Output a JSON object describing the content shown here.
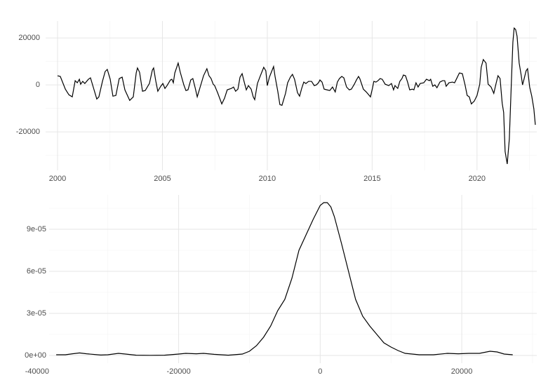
{
  "chart_data": [
    {
      "type": "line",
      "color": "#000000",
      "grid": true,
      "xlim": [
        1999.43,
        2022.85
      ],
      "ylim": [
        -36400,
        27200
      ],
      "xticks": [
        2000,
        2005,
        2010,
        2015,
        2020
      ],
      "yticks": [
        -20000,
        0,
        20000
      ],
      "minor_xticks": [
        2002.5,
        2007.5,
        2012.5,
        2017.5,
        2022.5
      ],
      "minor_yticks": [
        -30000,
        -10000,
        10000
      ],
      "x": [
        2000.0,
        2000.13,
        2000.37,
        2000.54,
        2000.7,
        2000.84,
        2000.94,
        2001.04,
        2001.1,
        2001.2,
        2001.3,
        2001.47,
        2001.57,
        2001.71,
        2001.87,
        2001.97,
        2002.14,
        2002.27,
        2002.37,
        2002.51,
        2002.64,
        2002.78,
        2002.94,
        2003.08,
        2003.21,
        2003.44,
        2003.61,
        2003.75,
        2003.81,
        2003.91,
        2004.05,
        2004.18,
        2004.38,
        2004.52,
        2004.58,
        2004.68,
        2004.78,
        2004.92,
        2005.02,
        2005.12,
        2005.22,
        2005.38,
        2005.45,
        2005.52,
        2005.59,
        2005.75,
        2005.85,
        2006.02,
        2006.12,
        2006.22,
        2006.35,
        2006.45,
        2006.56,
        2006.66,
        2006.79,
        2006.96,
        2007.12,
        2007.22,
        2007.32,
        2007.42,
        2007.49,
        2007.63,
        2007.83,
        2007.96,
        2008.09,
        2008.29,
        2008.39,
        2008.49,
        2008.6,
        2008.7,
        2008.8,
        2008.9,
        2009.0,
        2009.1,
        2009.23,
        2009.33,
        2009.4,
        2009.53,
        2009.67,
        2009.83,
        2009.93,
        2010.0,
        2010.1,
        2010.3,
        2010.37,
        2010.5,
        2010.6,
        2010.7,
        2010.87,
        2010.97,
        2011.1,
        2011.2,
        2011.3,
        2011.44,
        2011.54,
        2011.64,
        2011.74,
        2011.84,
        2011.97,
        2012.11,
        2012.24,
        2012.34,
        2012.44,
        2012.51,
        2012.61,
        2012.71,
        2012.84,
        2012.98,
        2013.11,
        2013.24,
        2013.34,
        2013.44,
        2013.55,
        2013.65,
        2013.78,
        2013.91,
        2014.01,
        2014.15,
        2014.25,
        2014.35,
        2014.41,
        2014.58,
        2014.72,
        2014.92,
        2015.02,
        2015.08,
        2015.18,
        2015.28,
        2015.38,
        2015.48,
        2015.62,
        2015.79,
        2015.92,
        2016.02,
        2016.09,
        2016.22,
        2016.32,
        2016.42,
        2016.49,
        2016.59,
        2016.69,
        2016.79,
        2016.92,
        2016.99,
        2017.09,
        2017.19,
        2017.29,
        2017.46,
        2017.59,
        2017.73,
        2017.79,
        2017.89,
        2017.99,
        2018.09,
        2018.23,
        2018.36,
        2018.46,
        2018.53,
        2018.66,
        2018.83,
        2018.93,
        2019.03,
        2019.16,
        2019.3,
        2019.43,
        2019.53,
        2019.63,
        2019.73,
        2019.87,
        2020.0,
        2020.13,
        2020.2,
        2020.3,
        2020.43,
        2020.53,
        2020.67,
        2020.8,
        2020.9,
        2021.0,
        2021.1,
        2021.2,
        2021.27,
        2021.34,
        2021.44,
        2021.54,
        2021.64,
        2021.71,
        2021.77,
        2021.84,
        2021.91,
        2022.01,
        2022.11,
        2022.17,
        2022.24,
        2022.34,
        2022.41,
        2022.51,
        2022.61,
        2022.71,
        2022.78
      ],
      "values": [
        3900,
        3600,
        -1800,
        -4200,
        -5100,
        1800,
        900,
        2400,
        300,
        1500,
        600,
        2400,
        3000,
        -1200,
        -6000,
        -5100,
        1500,
        5700,
        6600,
        2400,
        -4800,
        -4500,
        2700,
        3300,
        -2100,
        -6600,
        -5100,
        5100,
        7200,
        5400,
        -2700,
        -2400,
        600,
        6300,
        7200,
        1800,
        -2700,
        -600,
        600,
        -1500,
        -300,
        2100,
        2400,
        900,
        5100,
        9300,
        5400,
        0,
        -2400,
        -2100,
        2100,
        2700,
        -1200,
        -5100,
        -1200,
        3900,
        6900,
        3900,
        2700,
        300,
        -300,
        -3300,
        -8100,
        -5700,
        -2100,
        -1500,
        -900,
        -2700,
        -1800,
        3300,
        4800,
        1200,
        -2100,
        -300,
        -1800,
        -5100,
        -6300,
        600,
        3900,
        7500,
        6000,
        -300,
        3300,
        7800,
        3600,
        -2700,
        -8400,
        -8700,
        -3600,
        900,
        3300,
        4500,
        2400,
        -3300,
        -4800,
        -1500,
        1200,
        600,
        1500,
        1500,
        -300,
        0,
        900,
        2100,
        1200,
        -1800,
        -2100,
        -2400,
        -900,
        -3000,
        1200,
        2700,
        3600,
        3000,
        -900,
        -2100,
        -1800,
        300,
        2100,
        3600,
        2700,
        -1800,
        -3000,
        -5100,
        -1200,
        1500,
        1200,
        1800,
        2700,
        2400,
        300,
        -300,
        600,
        -2100,
        -300,
        -1500,
        1500,
        2700,
        4200,
        3900,
        1200,
        -2100,
        -1800,
        -2100,
        900,
        -900,
        600,
        900,
        2400,
        1800,
        2400,
        -600,
        0,
        -1200,
        1200,
        1800,
        1800,
        -600,
        900,
        1200,
        900,
        2700,
        5100,
        4800,
        0,
        -4500,
        -5100,
        -8100,
        -6900,
        -4500,
        300,
        7500,
        10800,
        9300,
        300,
        -900,
        -3600,
        300,
        3900,
        2700,
        -7800,
        -11700,
        -28400,
        -33700,
        -23100,
        1500,
        18200,
        24200,
        23600,
        20700,
        9300,
        3900,
        0,
        2400,
        6000,
        6900,
        -900,
        -4800,
        -10200,
        -17000
      ]
    },
    {
      "type": "line",
      "color": "#000000",
      "grid": true,
      "xlim": [
        -38300,
        30600
      ],
      "ylim": [
        -5.5e-06,
        0.0001145
      ],
      "xticks": [
        -40000,
        -20000,
        0,
        20000
      ],
      "yticks": [
        {
          "value": 0,
          "label": "0e+00"
        },
        {
          "value": 3e-05,
          "label": "3e-05"
        },
        {
          "value": 6e-05,
          "label": "6e-05"
        },
        {
          "value": 9e-05,
          "label": "9e-05"
        }
      ],
      "minor_xticks": [
        -30000,
        -10000,
        10000,
        30000
      ],
      "minor_yticks": [
        1.5e-05,
        4.5e-05,
        7.5e-05,
        0.000105
      ],
      "x": [
        -37300,
        -36000,
        -35000,
        -34000,
        -33000,
        -31000,
        -30000,
        -28500,
        -27500,
        -26000,
        -24000,
        -22000,
        -20000,
        -19000,
        -17500,
        -16500,
        -15000,
        -13000,
        -11000,
        -10000,
        -9000,
        -8000,
        -7000,
        -6000,
        -5000,
        -4000,
        -3000,
        -2000,
        -1000,
        0,
        500,
        1000,
        1500,
        2000,
        3000,
        4000,
        5000,
        6000,
        7000,
        8000,
        9000,
        10000,
        11000,
        12000,
        14000,
        16000,
        18000,
        19500,
        21000,
        22500,
        24000,
        25000,
        26000,
        27200
      ],
      "values": [
        5e-07,
        5e-07,
        1.2e-06,
        1.8e-06,
        1.2e-06,
        3e-07,
        5e-07,
        1.5e-06,
        1e-06,
        2e-07,
        1e-07,
        2e-07,
        1e-06,
        1.5e-06,
        1.2e-06,
        1.5e-06,
        8e-07,
        2e-07,
        1e-06,
        3e-06,
        7e-06,
        1.3e-05,
        2.1e-05,
        3.2e-05,
        4e-05,
        5.5e-05,
        7.5e-05,
        8.6e-05,
        9.7e-05,
        0.000107,
        0.000109,
        0.000109,
        0.000106,
        9.9e-05,
        8e-05,
        6e-05,
        4e-05,
        2.8e-05,
        2.1e-05,
        1.5e-05,
        9e-06,
        6e-06,
        3.5e-06,
        1.5e-06,
        5e-07,
        5e-07,
        1.5e-06,
        1.2e-06,
        1.5e-06,
        1.5e-06,
        3e-06,
        2.5e-06,
        1e-06,
        5e-07
      ]
    }
  ]
}
